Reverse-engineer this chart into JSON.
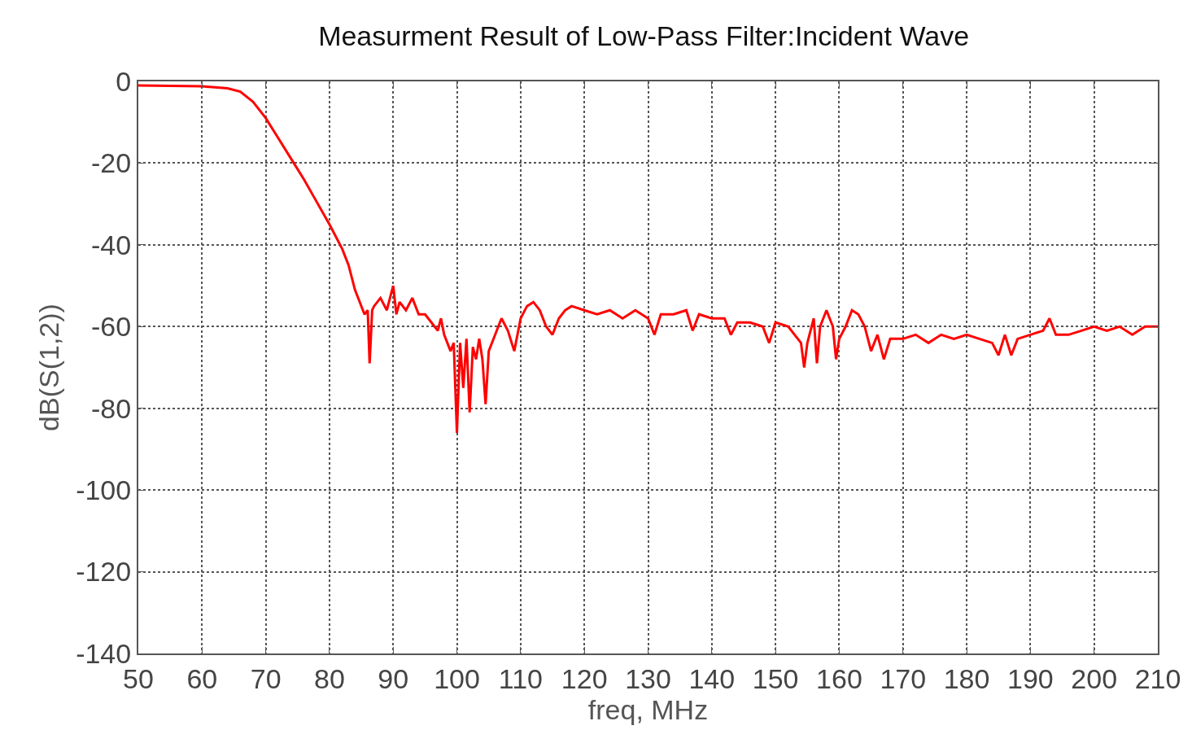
{
  "chart_data": {
    "type": "line",
    "title": "Measurment Result of Low-Pass Filter:Incident Wave",
    "xlabel": "freq, MHz",
    "ylabel": "dB(S(1,2))",
    "xlim": [
      50,
      210
    ],
    "xticks": [
      50,
      60,
      70,
      80,
      90,
      100,
      110,
      120,
      130,
      140,
      150,
      160,
      170,
      180,
      190,
      200,
      210
    ],
    "ylim": [
      -140,
      0
    ],
    "yticks": [
      -140,
      -120,
      -100,
      -80,
      -60,
      -40,
      -20,
      0
    ],
    "grid": true,
    "line_style": "solid",
    "series": [
      {
        "color": "#ff0000",
        "x": [
          50,
          60,
          64,
          66,
          68,
          70,
          72,
          74,
          76,
          78,
          80,
          82,
          83,
          84,
          85,
          85.5,
          86,
          86.3,
          86.7,
          87,
          88,
          89,
          90,
          90.5,
          91,
          92,
          93,
          94,
          95,
          96,
          97,
          97.5,
          98,
          99,
          99.5,
          100,
          100.5,
          101,
          101.5,
          102,
          102.5,
          103,
          103.5,
          104,
          104.5,
          105,
          106,
          107,
          108,
          109,
          110,
          111,
          112,
          113,
          114,
          115,
          116,
          117,
          118,
          120,
          122,
          124,
          126,
          128,
          130,
          131,
          132,
          134,
          136,
          137,
          138,
          140,
          142,
          143,
          144,
          146,
          148,
          149,
          150,
          152,
          153,
          154,
          154.5,
          155,
          156,
          156.5,
          157,
          158,
          159,
          159.5,
          160,
          161,
          162,
          163,
          164,
          165,
          166,
          167,
          168,
          170,
          172,
          174,
          176,
          178,
          180,
          182,
          184,
          185,
          186,
          187,
          188,
          190,
          192,
          193,
          194,
          196,
          198,
          200,
          202,
          204,
          206,
          208,
          210
        ],
        "values": [
          -1,
          -1.2,
          -1.7,
          -2.5,
          -5,
          -9,
          -14,
          -19,
          -24,
          -29.5,
          -35,
          -41,
          -45,
          -51,
          -55,
          -57,
          -56,
          -69,
          -56,
          -55,
          -53,
          -56,
          -50,
          -57,
          -54,
          -56,
          -53,
          -57,
          -57,
          -59,
          -61,
          -58,
          -62,
          -66,
          -64,
          -86,
          -64,
          -75,
          -63,
          -81,
          -65,
          -68,
          -63,
          -68,
          -79,
          -66,
          -62,
          -58,
          -61,
          -66,
          -58,
          -55,
          -54,
          -56,
          -60,
          -62,
          -58,
          -56,
          -55,
          -56,
          -57,
          -56,
          -58,
          -56,
          -58,
          -62,
          -57,
          -57,
          -56,
          -61,
          -57,
          -58,
          -58,
          -62,
          -59,
          -59,
          -60,
          -64,
          -59,
          -60,
          -62,
          -64,
          -70,
          -64,
          -58,
          -69,
          -60,
          -56,
          -60,
          -68,
          -63,
          -60,
          -56,
          -57,
          -60,
          -66,
          -62,
          -68,
          -63,
          -63,
          -62,
          -64,
          -62,
          -63,
          -62,
          -63,
          -64,
          -67,
          -62,
          -67,
          -63,
          -62,
          -61,
          -58,
          -62,
          -62,
          -61,
          -60,
          -61,
          -60,
          -62,
          -60,
          -60
        ]
      }
    ]
  }
}
